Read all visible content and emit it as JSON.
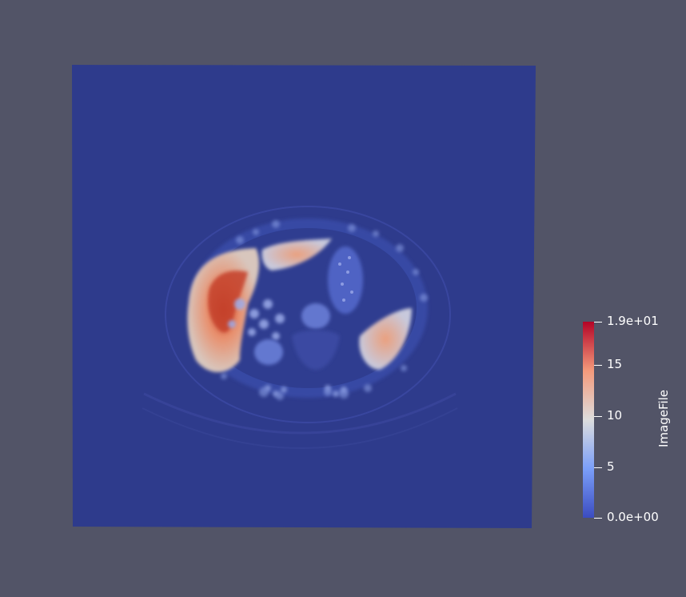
{
  "view": {
    "background_color": "#525467",
    "slice_background_color": "#2e3b8c"
  },
  "colorbar": {
    "title": "ImageFile",
    "colormap": "Cool to Warm",
    "range": [
      0,
      19
    ],
    "colors": {
      "low": "#3b4cc0",
      "mid": "#dddddd",
      "high": "#b40426"
    },
    "labels": {
      "max": "1.9e+01",
      "t15": "15",
      "t10": "10",
      "t5": "5",
      "min": "0.0e+00"
    }
  }
}
